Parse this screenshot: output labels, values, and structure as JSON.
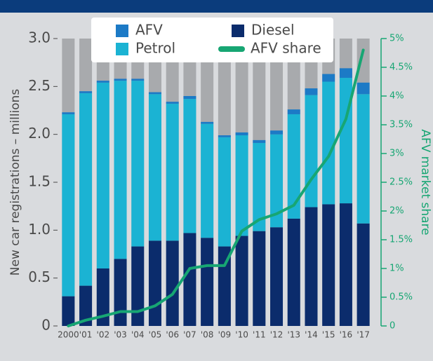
{
  "chart_data": {
    "type": "bar",
    "y_label": "New car registrations – millions",
    "y2_label": "AFV market share",
    "categories": [
      "2000",
      "'01",
      "'02",
      "'03",
      "'04",
      "'05",
      "'06",
      "'07",
      "'08",
      "'09",
      "'10",
      "'11",
      "'12",
      "'13",
      "'14",
      "'15",
      "'16",
      "'17"
    ],
    "series": [
      {
        "name": "Diesel",
        "color": "#0b2c6c",
        "values": [
          0.31,
          0.42,
          0.6,
          0.7,
          0.83,
          0.89,
          0.89,
          0.97,
          0.92,
          0.83,
          0.94,
          0.99,
          1.03,
          1.12,
          1.24,
          1.27,
          1.28,
          1.07
        ]
      },
      {
        "name": "Petrol",
        "color": "#1bb3d3",
        "values": [
          1.9,
          2.01,
          1.94,
          1.86,
          1.73,
          1.53,
          1.43,
          1.4,
          1.19,
          1.14,
          1.05,
          0.92,
          0.97,
          1.09,
          1.17,
          1.28,
          1.31,
          1.35
        ]
      },
      {
        "name": "AFV",
        "color": "#1c7ac6",
        "values": [
          0.02,
          0.02,
          0.02,
          0.02,
          0.02,
          0.02,
          0.02,
          0.03,
          0.02,
          0.02,
          0.03,
          0.03,
          0.04,
          0.05,
          0.07,
          0.08,
          0.1,
          0.12
        ]
      },
      {
        "name": "AFV share",
        "color": "#17a673",
        "axis": "y2",
        "type": "line",
        "values": [
          0,
          0.1,
          0.17,
          0.25,
          0.25,
          0.35,
          0.55,
          1.0,
          1.05,
          1.05,
          1.65,
          1.85,
          1.95,
          2.1,
          2.55,
          2.95,
          3.6,
          4.8
        ]
      }
    ],
    "ylim": [
      0,
      3
    ],
    "yticks": [
      0,
      0.5,
      {
        "value": 1,
        "label": "1.0"
      },
      1.5,
      {
        "value": 2,
        "label": "2.0"
      },
      2.5,
      {
        "value": 3,
        "label": "3.0"
      }
    ],
    "y2lim": [
      0,
      5
    ],
    "y2ticks": [
      0,
      {
        "value": 0.5,
        "label": "0.5%"
      },
      {
        "value": 1,
        "label": "1%"
      },
      {
        "value": 1.5,
        "label": "1.5%"
      },
      {
        "value": 2,
        "label": "2%"
      },
      {
        "value": 2.5,
        "label": "2.5%"
      },
      {
        "value": 3,
        "label": "3%"
      },
      {
        "value": 3.5,
        "label": "3.5%"
      },
      {
        "value": 4,
        "label": "4%"
      },
      {
        "value": 4.5,
        "label": "4.5%"
      },
      {
        "value": 5,
        "label": "5%"
      }
    ]
  }
}
